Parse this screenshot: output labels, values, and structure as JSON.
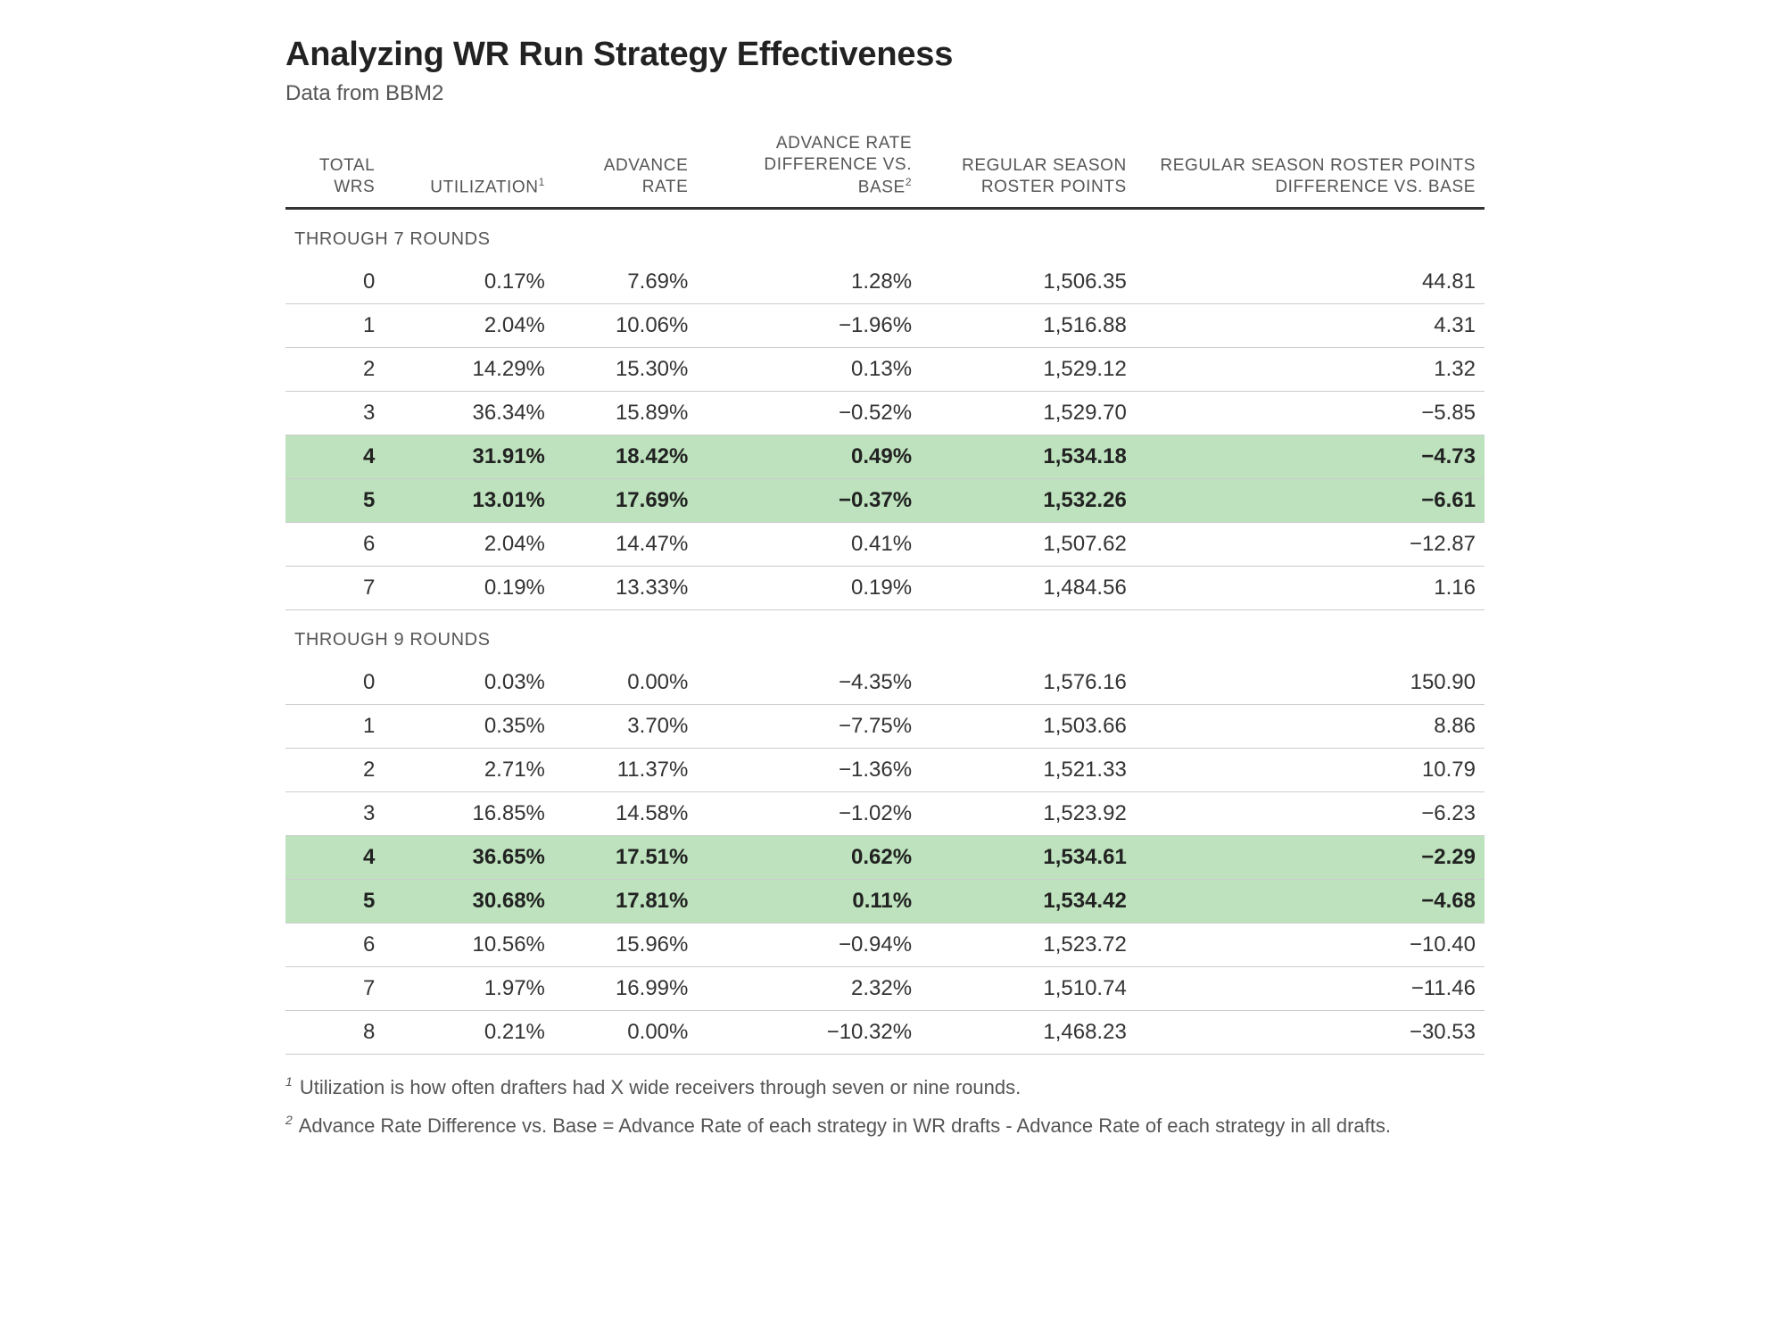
{
  "title": "Analyzing WR Run Strategy Effectiveness",
  "subtitle": "Data from BBM2",
  "columns": {
    "c0": "TOTAL WRS",
    "c1_pre": "UTILIZATION",
    "c1_sup": "1",
    "c2": "ADVANCE RATE",
    "c3_pre": "ADVANCE RATE DIFFERENCE VS. BASE",
    "c3_sup": "2",
    "c4": "REGULAR SEASON ROSTER POINTS",
    "c5": "REGULAR SEASON ROSTER POINTS DIFFERENCE VS. BASE"
  },
  "section1_label": "THROUGH 7 ROUNDS",
  "section2_label": "THROUGH 9 ROUNDS",
  "section1": [
    {
      "wrs": "0",
      "util": "0.17%",
      "adv": "7.69%",
      "advdiff": "1.28%",
      "pts": "1,506.35",
      "ptsdiff": "44.81",
      "hl": false
    },
    {
      "wrs": "1",
      "util": "2.04%",
      "adv": "10.06%",
      "advdiff": "−1.96%",
      "pts": "1,516.88",
      "ptsdiff": "4.31",
      "hl": false
    },
    {
      "wrs": "2",
      "util": "14.29%",
      "adv": "15.30%",
      "advdiff": "0.13%",
      "pts": "1,529.12",
      "ptsdiff": "1.32",
      "hl": false
    },
    {
      "wrs": "3",
      "util": "36.34%",
      "adv": "15.89%",
      "advdiff": "−0.52%",
      "pts": "1,529.70",
      "ptsdiff": "−5.85",
      "hl": false
    },
    {
      "wrs": "4",
      "util": "31.91%",
      "adv": "18.42%",
      "advdiff": "0.49%",
      "pts": "1,534.18",
      "ptsdiff": "−4.73",
      "hl": true
    },
    {
      "wrs": "5",
      "util": "13.01%",
      "adv": "17.69%",
      "advdiff": "−0.37%",
      "pts": "1,532.26",
      "ptsdiff": "−6.61",
      "hl": true
    },
    {
      "wrs": "6",
      "util": "2.04%",
      "adv": "14.47%",
      "advdiff": "0.41%",
      "pts": "1,507.62",
      "ptsdiff": "−12.87",
      "hl": false
    },
    {
      "wrs": "7",
      "util": "0.19%",
      "adv": "13.33%",
      "advdiff": "0.19%",
      "pts": "1,484.56",
      "ptsdiff": "1.16",
      "hl": false
    }
  ],
  "section2": [
    {
      "wrs": "0",
      "util": "0.03%",
      "adv": "0.00%",
      "advdiff": "−4.35%",
      "pts": "1,576.16",
      "ptsdiff": "150.90",
      "hl": false
    },
    {
      "wrs": "1",
      "util": "0.35%",
      "adv": "3.70%",
      "advdiff": "−7.75%",
      "pts": "1,503.66",
      "ptsdiff": "8.86",
      "hl": false
    },
    {
      "wrs": "2",
      "util": "2.71%",
      "adv": "11.37%",
      "advdiff": "−1.36%",
      "pts": "1,521.33",
      "ptsdiff": "10.79",
      "hl": false
    },
    {
      "wrs": "3",
      "util": "16.85%",
      "adv": "14.58%",
      "advdiff": "−1.02%",
      "pts": "1,523.92",
      "ptsdiff": "−6.23",
      "hl": false
    },
    {
      "wrs": "4",
      "util": "36.65%",
      "adv": "17.51%",
      "advdiff": "0.62%",
      "pts": "1,534.61",
      "ptsdiff": "−2.29",
      "hl": true
    },
    {
      "wrs": "5",
      "util": "30.68%",
      "adv": "17.81%",
      "advdiff": "0.11%",
      "pts": "1,534.42",
      "ptsdiff": "−4.68",
      "hl": true
    },
    {
      "wrs": "6",
      "util": "10.56%",
      "adv": "15.96%",
      "advdiff": "−0.94%",
      "pts": "1,523.72",
      "ptsdiff": "−10.40",
      "hl": false
    },
    {
      "wrs": "7",
      "util": "1.97%",
      "adv": "16.99%",
      "advdiff": "2.32%",
      "pts": "1,510.74",
      "ptsdiff": "−11.46",
      "hl": false
    },
    {
      "wrs": "8",
      "util": "0.21%",
      "adv": "0.00%",
      "advdiff": "−10.32%",
      "pts": "1,468.23",
      "ptsdiff": "−30.53",
      "hl": false
    }
  ],
  "footnote1_sup": "1",
  "footnote1": " Utilization is how often drafters had X wide receivers through seven or nine rounds.",
  "footnote2_sup": "2",
  "footnote2": " Advance Rate Difference vs. Base = Advance Rate of each strategy in WR drafts - Advance Rate of each strategy in all drafts.",
  "style": {
    "highlight_bg": "#bde2bd",
    "border_color": "#cccccc",
    "header_border": "#333333",
    "text_color": "#333333",
    "muted_color": "#555555",
    "background": "#ffffff",
    "title_fontsize": 38,
    "body_fontsize": 24,
    "header_fontsize": 19
  }
}
